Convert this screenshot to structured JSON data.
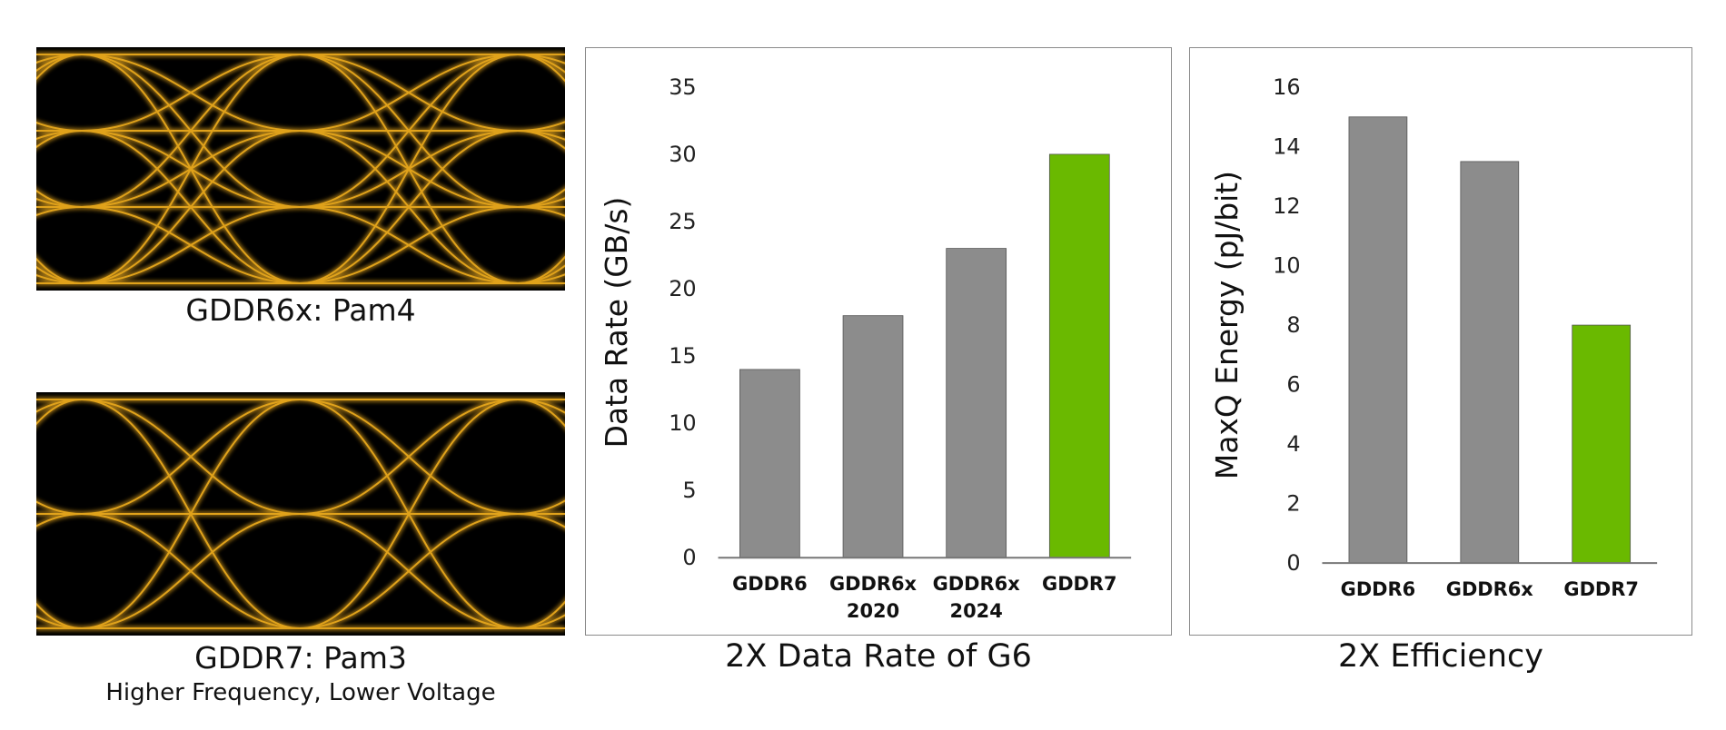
{
  "eye_diagrams": [
    {
      "label": "GDDR6x: Pam4",
      "sublabel": "",
      "levels": 4,
      "trace_color": "#E0A21B"
    },
    {
      "label": "GDDR7: Pam3",
      "sublabel": "Higher Frequency, Lower Voltage",
      "levels": 3,
      "trace_color": "#E0A21B"
    }
  ],
  "chart_data": [
    {
      "type": "bar",
      "title": "2X Data Rate of G6",
      "ylabel": "Data Rate (GB/s)",
      "xlabel": "",
      "categories": [
        [
          "GDDR6"
        ],
        [
          "GDDR6x",
          "2020"
        ],
        [
          "GDDR6x",
          "2024"
        ],
        [
          "GDDR7"
        ]
      ],
      "values": [
        14,
        18,
        23,
        30
      ],
      "colors": [
        "#8C8C8C",
        "#8C8C8C",
        "#8C8C8C",
        "#6AB900"
      ],
      "ylim": [
        0,
        35
      ],
      "yticks": [
        0,
        5,
        10,
        15,
        20,
        25,
        30,
        35
      ],
      "grid": false
    },
    {
      "type": "bar",
      "title": "2X Efficiency",
      "ylabel": "MaxQ Energy (pJ/bit)",
      "xlabel": "",
      "categories": [
        [
          "GDDR6"
        ],
        [
          "GDDR6x"
        ],
        [
          "GDDR7"
        ]
      ],
      "values": [
        15,
        13.5,
        8
      ],
      "colors": [
        "#8C8C8C",
        "#8C8C8C",
        "#6AB900"
      ],
      "ylim": [
        0,
        16
      ],
      "yticks": [
        0,
        2,
        4,
        6,
        8,
        10,
        12,
        14,
        16
      ],
      "grid": false
    }
  ]
}
